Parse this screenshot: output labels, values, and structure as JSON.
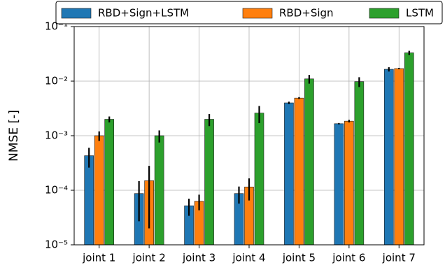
{
  "chart_data": {
    "type": "bar",
    "y_label": "NMSE [-]",
    "log_scale": true,
    "grid": true,
    "legend": "upper center",
    "categories": [
      "joint 1",
      "joint 2",
      "joint 3",
      "joint 4",
      "joint 5",
      "joint 6",
      "joint 7"
    ],
    "series": [
      {
        "name": "RBD+Sign+LSTM",
        "color": "#1f77b4",
        "values": [
          0.00043,
          8.7e-05,
          5.2e-05,
          8.7e-05,
          0.004,
          0.00166,
          0.0165
        ],
        "errors": [
          0.00017,
          6e-05,
          1.8e-05,
          3e-05,
          0.0002,
          5e-05,
          0.0015
        ]
      },
      {
        "name": "RBD+Sign",
        "color": "#ff7f0e",
        "values": [
          0.001,
          0.00015,
          6.3e-05,
          0.000115,
          0.0049,
          0.00185,
          0.017
        ],
        "errors": [
          0.0002,
          0.00013,
          2e-05,
          5e-05,
          0.0002,
          0.0001,
          0.0005
        ]
      },
      {
        "name": "LSTM",
        "color": "#2ca02c",
        "values": [
          0.002,
          0.001,
          0.002,
          0.0026,
          0.011,
          0.0098,
          0.033
        ],
        "errors": [
          0.00025,
          0.00025,
          0.0005,
          0.0009,
          0.002,
          0.002,
          0.003
        ]
      }
    ],
    "ylim": [
      1e-05,
      0.1
    ],
    "yticks": [
      {
        "value": 1e-05,
        "label": "10⁻⁵"
      },
      {
        "value": 0.0001,
        "label": "10⁻⁴"
      },
      {
        "value": 0.001,
        "label": "10⁻³"
      },
      {
        "value": 0.01,
        "label": "10⁻²"
      },
      {
        "value": 0.1,
        "label": "10⁻¹"
      }
    ]
  }
}
